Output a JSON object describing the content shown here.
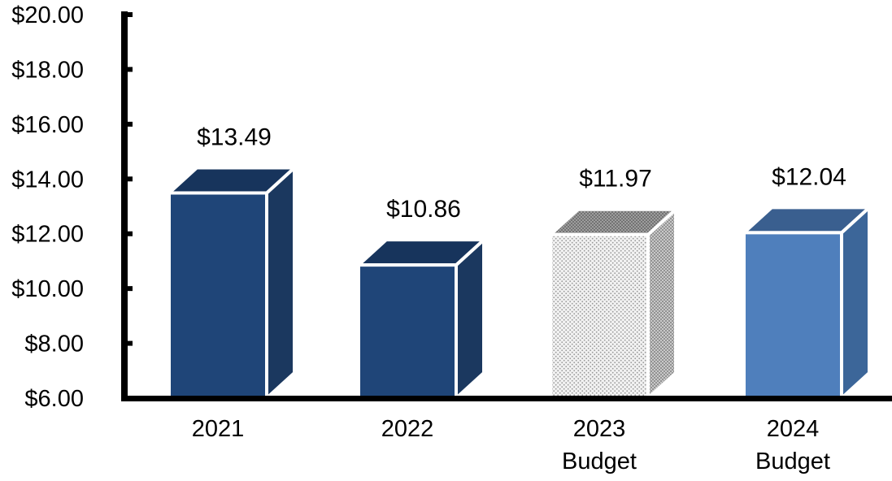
{
  "chart_data": {
    "type": "bar",
    "title": "",
    "xlabel": "",
    "ylabel": "",
    "ylim": [
      6,
      20
    ],
    "yticks": [
      "$6.00",
      "$8.00",
      "$10.00",
      "$12.00",
      "$14.00",
      "$16.00",
      "$18.00",
      "$20.00"
    ],
    "categories": [
      [
        "2021"
      ],
      [
        "2022"
      ],
      [
        "2023",
        "Budget"
      ],
      [
        "2024",
        "Budget"
      ]
    ],
    "values": [
      13.49,
      10.86,
      11.97,
      12.04
    ],
    "value_labels": [
      "$13.49",
      "$10.86",
      "$11.97",
      "$12.04"
    ],
    "bar_styles": [
      "solid-dark",
      "solid-dark",
      "dotted",
      "solid-light"
    ],
    "colors": {
      "dark_front": "#1f4578",
      "dark_side": "#1b385f",
      "dark_top": "#17345c",
      "light_front": "#4f7fbc",
      "light_side": "#3c6699",
      "light_top": "#3a5f8f",
      "dotted_base": "#f1f1f1",
      "dotted_dot": "#8a8a8a"
    },
    "grid": false,
    "legend": "none"
  }
}
